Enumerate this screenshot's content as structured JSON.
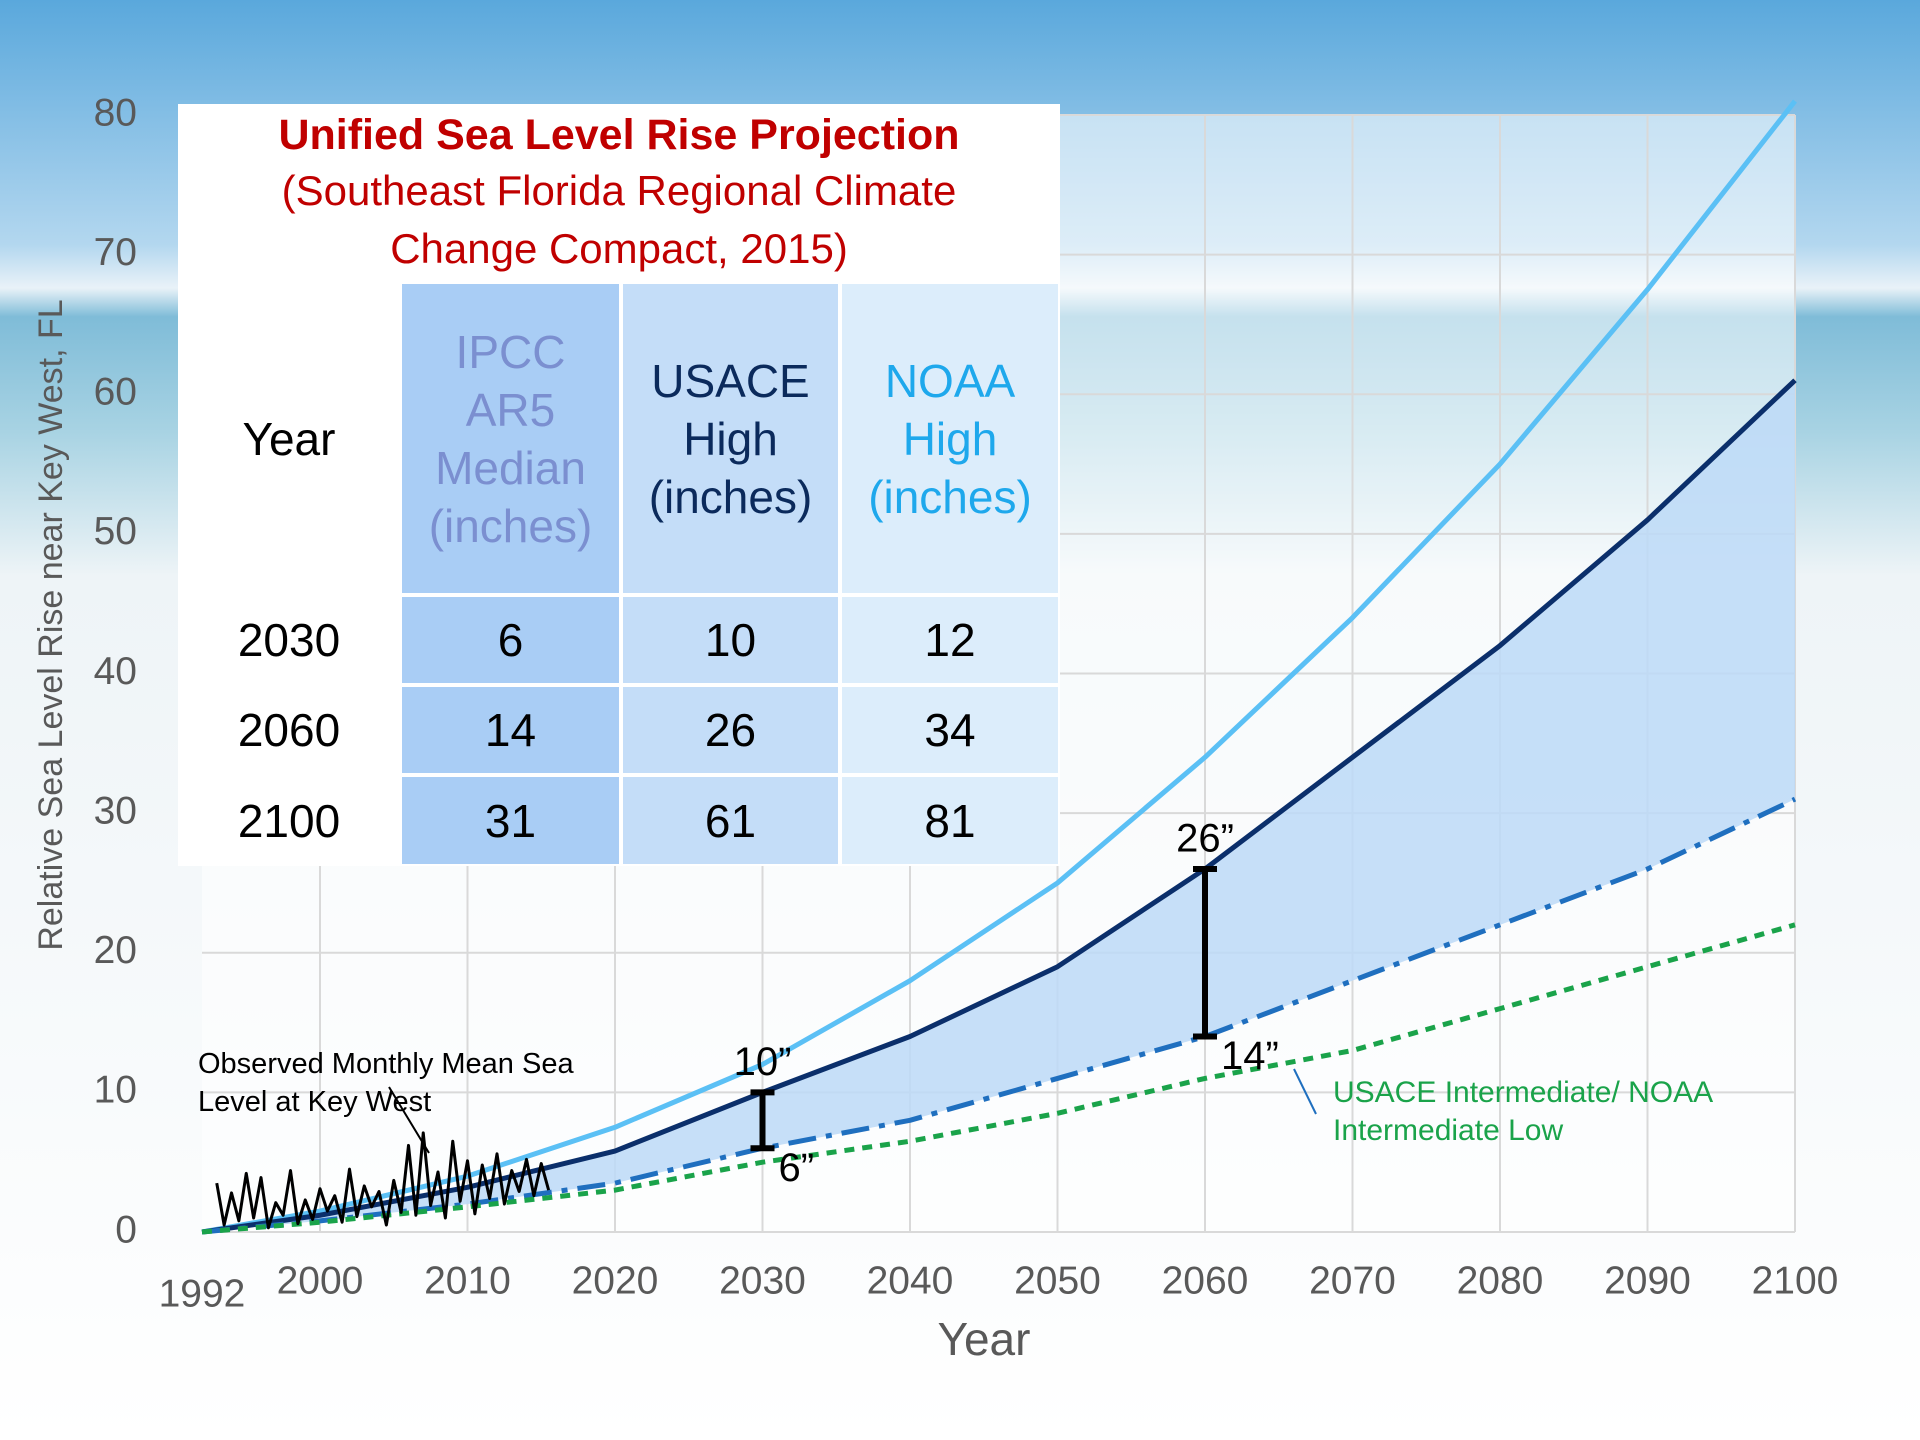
{
  "chart_data": {
    "type": "line",
    "title": "Unified Sea Level Rise Projection",
    "subtitle": "(Southeast Florida Regional Climate Change Compact, 2015)",
    "x_label": "Year",
    "y_label": "Relative Sea Level Rise near Key West, FL",
    "xlim": [
      1992,
      2100
    ],
    "xticks": [
      1992,
      2000,
      2010,
      2020,
      2030,
      2040,
      2050,
      2060,
      2070,
      2080,
      2090,
      2100
    ],
    "ylim": [
      0,
      80
    ],
    "yticks": [
      0,
      10,
      20,
      30,
      40,
      50,
      60,
      70,
      80
    ],
    "grid": true,
    "x": [
      1992,
      2000,
      2010,
      2020,
      2030,
      2040,
      2050,
      2060,
      2070,
      2080,
      2090,
      2100
    ],
    "series": [
      {
        "color": "#5bc0f5",
        "dash": "solid",
        "values": [
          0,
          1.5,
          4,
          7.5,
          12,
          18,
          25,
          34,
          44,
          55,
          67.5,
          81
        ]
      },
      {
        "color": "#0b2f6b",
        "dash": "solid",
        "values": [
          0,
          1.2,
          3.2,
          5.8,
          10,
          14,
          19,
          26,
          34,
          42,
          51,
          61
        ]
      },
      {
        "color": "#1f6fbf",
        "dash": "dash-dot",
        "values": [
          0,
          0.8,
          2,
          3.5,
          6,
          8,
          11,
          14,
          18,
          22,
          26,
          31
        ]
      },
      {
        "name": "USACE Intermediate/ NOAA Intermediate Low",
        "color": "#1aa34a",
        "dash": "dashed",
        "values": [
          0,
          0.7,
          1.8,
          3,
          5,
          6.5,
          8.5,
          11,
          13,
          16,
          19,
          22
        ]
      },
      {
        "name": "Observed Monthly Mean Sea Level at Key West",
        "color": "#000000",
        "dash": "solid",
        "x": [
          1993,
          1993.5,
          1994,
          1994.5,
          1995,
          1995.5,
          1996,
          1996.5,
          1997,
          1997.5,
          1998,
          1998.5,
          1999,
          1999.5,
          2000,
          2000.5,
          2001,
          2001.5,
          2002,
          2002.5,
          2003,
          2003.5,
          2004,
          2004.5,
          2005,
          2005.5,
          2006,
          2006.5,
          2007,
          2007.5,
          2008,
          2008.5,
          2009,
          2009.5,
          2010,
          2010.5,
          2011,
          2011.5,
          2012,
          2012.5,
          2013,
          2013.5,
          2014,
          2014.5,
          2015,
          2015.5
        ],
        "values": [
          3.5,
          0.5,
          2.8,
          0.8,
          4.2,
          1.0,
          3.9,
          0.3,
          2.1,
          1.2,
          4.4,
          0.6,
          2.3,
          0.9,
          3.1,
          1.5,
          2.6,
          0.7,
          4.5,
          1.1,
          3.3,
          1.8,
          2.9,
          0.5,
          3.7,
          1.4,
          6.2,
          1.2,
          7.1,
          1.9,
          4.3,
          1.0,
          6.5,
          2.2,
          5.1,
          1.3,
          4.8,
          2.4,
          5.6,
          2.0,
          4.4,
          2.9,
          5.2,
          2.6,
          4.9,
          3.0
        ]
      }
    ],
    "fill_between": [
      1,
      2
    ],
    "fill_color": "#bcd9f7",
    "brackets": [
      {
        "x": 2030,
        "low": 6,
        "high": 10,
        "high_label": "10”",
        "low_label": "6”"
      },
      {
        "x": 2060,
        "low": 14,
        "high": 26,
        "high_label": "26”",
        "low_label": "14”"
      }
    ],
    "table": {
      "header": [
        "Year",
        "IPCC AR5 Median (inches)",
        "USACE High (inches)",
        "NOAA High (inches)"
      ],
      "header_colors": [
        "#000000",
        "#7b8fd0",
        "#0b2a5c",
        "#1ea8ec"
      ],
      "column_fills": [
        "#ffffff",
        "#a9cdf5",
        "#c4ddf8",
        "#dcedfb"
      ],
      "rows": [
        [
          2030,
          6,
          10,
          12
        ],
        [
          2060,
          14,
          26,
          34
        ],
        [
          2100,
          31,
          61,
          81
        ]
      ]
    }
  }
}
